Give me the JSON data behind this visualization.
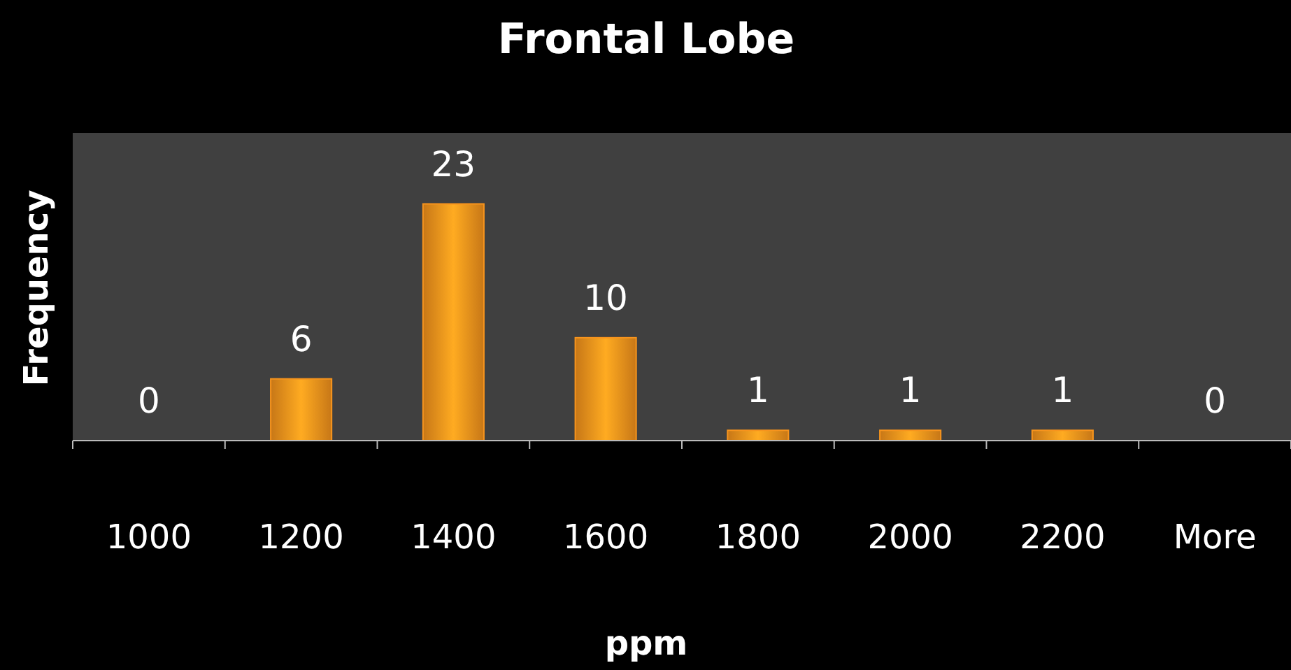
{
  "chart_data": {
    "type": "bar",
    "title": "Frontal Lobe",
    "xlabel": "ppm",
    "ylabel": "Frequency",
    "categories": [
      "1000",
      "1200",
      "1400",
      "1600",
      "1800",
      "2000",
      "2200",
      "More"
    ],
    "values": [
      0,
      6,
      23,
      10,
      1,
      1,
      1,
      0
    ],
    "color": "#f7941d",
    "data_labels": true,
    "grid": false
  }
}
